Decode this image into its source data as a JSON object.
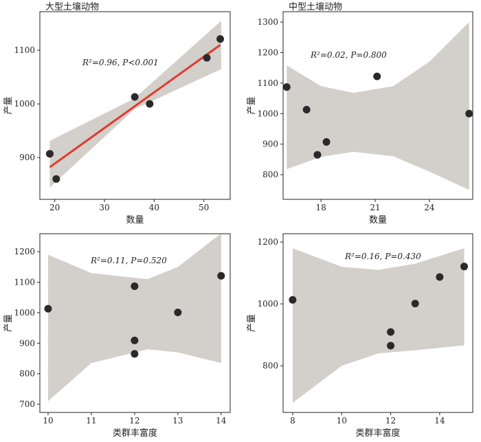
{
  "chart_data": [
    {
      "type": "scatter",
      "title": "大型土壤动物",
      "xlabel": "数量",
      "ylabel": "产量",
      "annotation": "R²=0.96, P<0.001",
      "x": [
        19,
        20.3,
        36.1,
        39.1,
        50.6,
        53.3
      ],
      "y": [
        907,
        860,
        1013,
        1000,
        1086,
        1121
      ],
      "xlim": [
        17,
        55.3
      ],
      "ylim": [
        822,
        1172
      ],
      "xticks": [
        20,
        30,
        40,
        50
      ],
      "yticks": [
        900,
        1000,
        1100
      ],
      "color": "#2a2a2a",
      "fit": {
        "x": [
          19,
          53.3
        ],
        "y": [
          882,
          1110
        ],
        "color": "#e03a2f"
      },
      "band": {
        "x": [
          19,
          36,
          53.5
        ],
        "upper": [
          931,
          1010,
          1155
        ],
        "lower": [
          844,
          990,
          1065
        ],
        "color": "#d3cfca"
      }
    },
    {
      "type": "scatter",
      "title": "中型土壤动物",
      "xlabel": "数量",
      "ylabel": "产量",
      "annotation": "R²=0.02, P=0.800",
      "x": [
        16.1,
        17.2,
        17.8,
        18.3,
        21.1,
        26.2
      ],
      "y": [
        1087,
        1013,
        865,
        907,
        1122,
        1000
      ],
      "xlim": [
        15.9,
        26.4
      ],
      "ylim": [
        719,
        1334
      ],
      "xticks": [
        18,
        21,
        24
      ],
      "yticks": [
        800,
        900,
        1000,
        1100,
        1200,
        1300
      ],
      "color": "#2a2a2a",
      "band": {
        "x": [
          16.1,
          18,
          19.8,
          22,
          24,
          26.2
        ],
        "upper": [
          1158,
          1090,
          1068,
          1090,
          1170,
          1300
        ],
        "lower": [
          818,
          858,
          875,
          860,
          810,
          750
        ],
        "color": "#d3cfca"
      }
    },
    {
      "type": "scatter",
      "xlabel": "类群丰富度",
      "ylabel": "产量",
      "annotation": "R²=0.11, P=0.520",
      "x": [
        10,
        12,
        12,
        12,
        13,
        14
      ],
      "y": [
        1013,
        1087,
        909,
        865,
        1001,
        1121
      ],
      "xlim": [
        9.81,
        14.21
      ],
      "ylim": [
        673,
        1259
      ],
      "xticks": [
        10,
        11,
        12,
        13,
        14
      ],
      "yticks": [
        700,
        800,
        900,
        1000,
        1100,
        1200
      ],
      "color": "#2a2a2a",
      "band": {
        "x": [
          10,
          11,
          12.3,
          13,
          14
        ],
        "upper": [
          1190,
          1130,
          1110,
          1150,
          1260
        ],
        "lower": [
          710,
          835,
          880,
          870,
          835
        ],
        "color": "#d3cfca"
      }
    },
    {
      "type": "scatter",
      "xlabel": "类群丰富度",
      "ylabel": "产量",
      "annotation": "R²=0.16, P=0.430",
      "x": [
        8,
        12,
        12,
        13,
        14,
        15
      ],
      "y": [
        1013,
        909,
        865,
        1001,
        1087,
        1121
      ],
      "xlim": [
        7.61,
        15.35
      ],
      "ylim": [
        649,
        1227
      ],
      "xticks": [
        8,
        10,
        12,
        14
      ],
      "yticks": [
        800,
        1000,
        1200
      ],
      "color": "#2a2a2a",
      "band": {
        "x": [
          8,
          10,
          11.5,
          13,
          15
        ],
        "upper": [
          1180,
          1120,
          1110,
          1130,
          1180
        ],
        "lower": [
          680,
          800,
          840,
          850,
          866
        ],
        "color": "#d3cfca"
      }
    }
  ]
}
